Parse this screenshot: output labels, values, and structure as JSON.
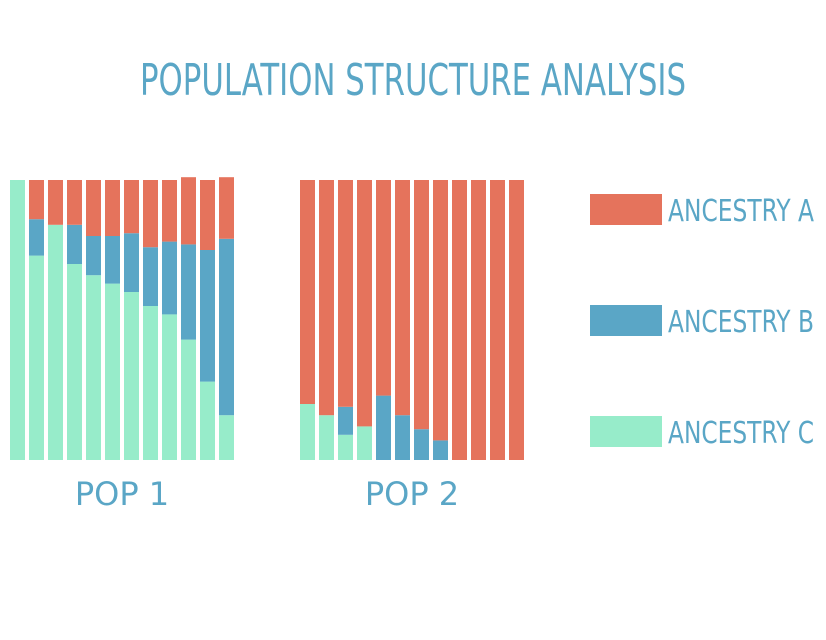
{
  "chart_data": {
    "type": "bar",
    "stacked": true,
    "normalized": true,
    "title": "POPULATION STRUCTURE ANALYSIS",
    "groups": [
      {
        "label": "POP 1",
        "bars": [
          {
            "A": 0.0,
            "B": 0.0,
            "C": 1.0
          },
          {
            "A": 0.14,
            "B": 0.13,
            "C": 0.73
          },
          {
            "A": 0.16,
            "B": 0.0,
            "C": 0.84
          },
          {
            "A": 0.16,
            "B": 0.14,
            "C": 0.7
          },
          {
            "A": 0.2,
            "B": 0.14,
            "C": 0.66
          },
          {
            "A": 0.2,
            "B": 0.17,
            "C": 0.63
          },
          {
            "A": 0.19,
            "B": 0.21,
            "C": 0.6
          },
          {
            "A": 0.24,
            "B": 0.21,
            "C": 0.55
          },
          {
            "A": 0.22,
            "B": 0.26,
            "C": 0.52
          },
          {
            "A": 0.24,
            "B": 0.34,
            "C": 0.43
          },
          {
            "A": 0.25,
            "B": 0.47,
            "C": 0.28
          },
          {
            "A": 0.22,
            "B": 0.63,
            "C": 0.16
          }
        ]
      },
      {
        "label": "POP 2",
        "bars": [
          {
            "A": 0.8,
            "B": 0.0,
            "C": 0.2
          },
          {
            "A": 0.84,
            "B": 0.0,
            "C": 0.16
          },
          {
            "A": 0.81,
            "B": 0.1,
            "C": 0.09
          },
          {
            "A": 0.88,
            "B": 0.0,
            "C": 0.12
          },
          {
            "A": 0.77,
            "B": 0.23,
            "C": 0.0
          },
          {
            "A": 0.84,
            "B": 0.16,
            "C": 0.0
          },
          {
            "A": 0.89,
            "B": 0.11,
            "C": 0.0
          },
          {
            "A": 0.93,
            "B": 0.07,
            "C": 0.0
          },
          {
            "A": 1.0,
            "B": 0.0,
            "C": 0.0
          },
          {
            "A": 1.0,
            "B": 0.0,
            "C": 0.0
          },
          {
            "A": 1.0,
            "B": 0.0,
            "C": 0.0
          },
          {
            "A": 1.0,
            "B": 0.0,
            "C": 0.0
          }
        ]
      }
    ],
    "series": [
      {
        "key": "A",
        "name": "ANCESTRY A",
        "color": "#e5735c"
      },
      {
        "key": "B",
        "name": "ANCESTRY B",
        "color": "#5aa6c6"
      },
      {
        "key": "C",
        "name": "ANCESTRY C",
        "color": "#97ecca"
      }
    ],
    "stack_order_bottom_to_top": [
      "C",
      "B",
      "A"
    ],
    "ylim": [
      0,
      1
    ],
    "grid": false,
    "legend_position": "right"
  }
}
